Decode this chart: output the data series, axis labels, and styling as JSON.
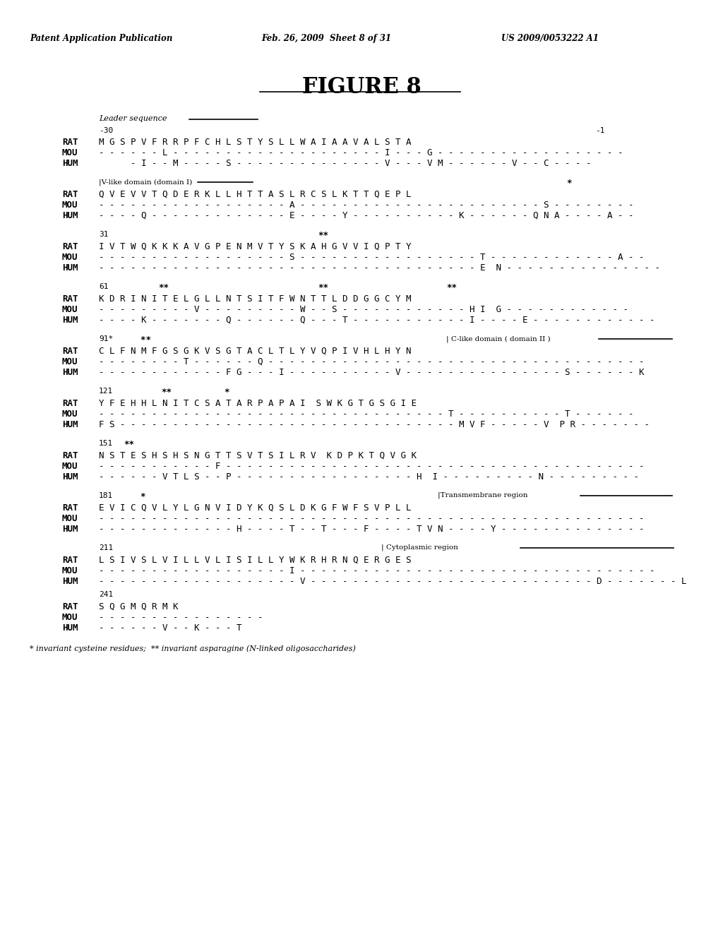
{
  "title": "FIGURE 8",
  "header_left": "Patent Application Publication",
  "header_mid": "Feb. 26, 2009  Sheet 8 of 31",
  "header_right": "US 2009/0053222 A1",
  "footer": "* invariant cysteine residues;  ** invariant asparagine (N-linked oligosaccharides)"
}
